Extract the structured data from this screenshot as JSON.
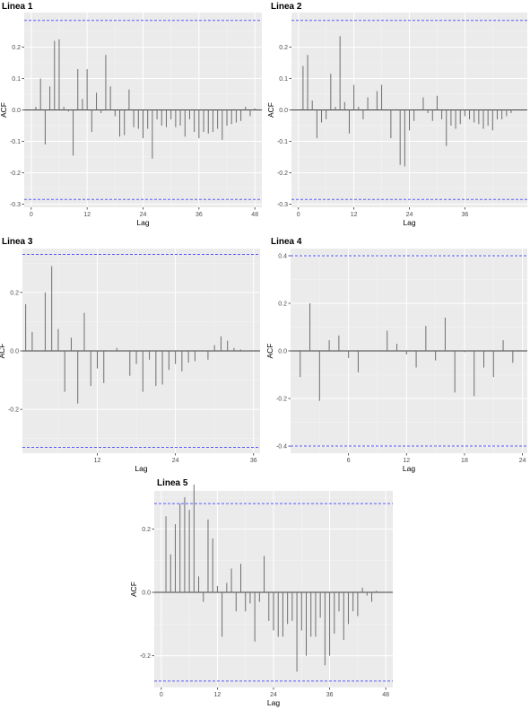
{
  "chart_data": [
    {
      "type": "bar",
      "title": "Linea 1",
      "xlabel": "Lag",
      "ylabel": "ACF",
      "xlim": [
        -1.5,
        49.5
      ],
      "ylim": [
        -0.31,
        0.31
      ],
      "xticks": [
        0,
        12,
        24,
        36,
        48
      ],
      "yticks": [
        -0.3,
        -0.2,
        -0.1,
        0.0,
        0.1,
        0.2
      ],
      "ytick_labels": [
        "-0.3",
        "-0.2",
        "-0.1",
        "0.0",
        "0.1",
        "0.2"
      ],
      "confidence_limit": 0.285,
      "grid": true,
      "lags": [
        1,
        2,
        3,
        4,
        5,
        6,
        7,
        8,
        9,
        10,
        11,
        12,
        13,
        14,
        15,
        16,
        17,
        18,
        19,
        20,
        21,
        22,
        23,
        24,
        25,
        26,
        27,
        28,
        29,
        30,
        31,
        32,
        33,
        34,
        35,
        36,
        37,
        38,
        39,
        40,
        41,
        42,
        43,
        44,
        45,
        46,
        47,
        48
      ],
      "values": [
        0.01,
        0.1,
        -0.11,
        0.075,
        0.22,
        0.225,
        0.01,
        -0.005,
        -0.145,
        0.13,
        0.035,
        0.13,
        -0.07,
        0.055,
        -0.01,
        0.175,
        0.075,
        -0.02,
        -0.085,
        -0.08,
        0.065,
        -0.055,
        -0.06,
        -0.09,
        -0.06,
        -0.155,
        -0.03,
        -0.05,
        -0.055,
        -0.03,
        -0.055,
        -0.05,
        -0.085,
        -0.03,
        -0.07,
        -0.09,
        -0.07,
        -0.075,
        -0.07,
        -0.06,
        -0.095,
        -0.05,
        -0.045,
        -0.04,
        -0.035,
        0.01,
        -0.02,
        0.005
      ]
    },
    {
      "type": "bar",
      "title": "Linea 2",
      "xlabel": "Lag",
      "ylabel": "ACF",
      "xlim": [
        -1.5,
        49.5
      ],
      "ylim": [
        -0.31,
        0.31
      ],
      "xticks": [
        0,
        12,
        24,
        36
      ],
      "yticks": [
        -0.3,
        -0.2,
        -0.1,
        0.0,
        0.1,
        0.2
      ],
      "ytick_labels": [
        "-0.3",
        "-0.2",
        "-0.1",
        "0.0",
        "0.1",
        "0.2"
      ],
      "confidence_limit": 0.285,
      "grid": true,
      "lags": [
        1,
        2,
        3,
        4,
        5,
        6,
        7,
        8,
        9,
        10,
        11,
        12,
        13,
        14,
        15,
        16,
        17,
        18,
        19,
        20,
        21,
        22,
        23,
        24,
        25,
        26,
        27,
        28,
        29,
        30,
        31,
        32,
        33,
        34,
        35,
        36,
        37,
        38,
        39,
        40,
        41,
        42,
        43,
        44,
        45,
        46,
        47,
        48
      ],
      "values": [
        0.14,
        0.175,
        0.03,
        -0.09,
        -0.04,
        -0.03,
        0.115,
        0.01,
        0.235,
        0.025,
        -0.075,
        0.08,
        0.01,
        -0.03,
        0.04,
        0.0,
        0.06,
        0.08,
        0.0,
        -0.09,
        0.0,
        -0.175,
        -0.18,
        -0.065,
        -0.035,
        0.0,
        0.04,
        -0.01,
        -0.035,
        0.045,
        -0.03,
        -0.115,
        -0.05,
        -0.06,
        -0.045,
        -0.02,
        -0.03,
        -0.04,
        -0.045,
        -0.06,
        -0.05,
        -0.065,
        -0.03,
        -0.03,
        -0.02,
        -0.01,
        0.0,
        0.0
      ]
    },
    {
      "type": "bar",
      "title": "Linea 3",
      "xlabel": "Lag",
      "ylabel": "ACF",
      "xlim": [
        0.5,
        37
      ],
      "ylim": [
        -0.35,
        0.35
      ],
      "xticks": [
        12,
        24,
        36
      ],
      "yticks": [
        -0.2,
        0.0,
        0.2
      ],
      "ytick_labels": [
        "-0.2",
        "0.0",
        "0.2"
      ],
      "confidence_limit": 0.33,
      "grid": true,
      "lags": [
        1,
        2,
        3,
        4,
        5,
        6,
        7,
        8,
        9,
        10,
        11,
        12,
        13,
        14,
        15,
        16,
        17,
        18,
        19,
        20,
        21,
        22,
        23,
        24,
        25,
        26,
        27,
        28,
        29,
        30,
        31,
        32,
        33,
        34,
        35,
        36
      ],
      "values": [
        0.16,
        0.065,
        0.0,
        0.2,
        0.29,
        0.075,
        -0.14,
        0.045,
        -0.18,
        0.13,
        -0.12,
        -0.06,
        -0.11,
        0.0,
        0.01,
        0.0,
        -0.085,
        -0.045,
        -0.14,
        -0.03,
        -0.12,
        -0.115,
        -0.065,
        -0.045,
        -0.07,
        -0.04,
        -0.035,
        0.0,
        -0.03,
        0.02,
        0.05,
        0.035,
        0.01,
        0.005,
        0.0,
        0.0
      ]
    },
    {
      "type": "bar",
      "title": "Linea 4",
      "xlabel": "Lag",
      "ylabel": "ACF",
      "xlim": [
        0,
        24.5
      ],
      "ylim": [
        -0.43,
        0.43
      ],
      "xticks": [
        6,
        12,
        18,
        24
      ],
      "yticks": [
        -0.4,
        -0.2,
        0.0,
        0.2,
        0.4
      ],
      "ytick_labels": [
        "-0.4",
        "-0.2",
        "0.0",
        "0.2",
        "0.4"
      ],
      "confidence_limit": 0.4,
      "grid": true,
      "lags": [
        1,
        2,
        3,
        4,
        5,
        6,
        7,
        8,
        9,
        10,
        11,
        12,
        13,
        14,
        15,
        16,
        17,
        18,
        19,
        20,
        21,
        22,
        23
      ],
      "values": [
        -0.11,
        0.2,
        -0.21,
        0.045,
        0.065,
        -0.03,
        -0.09,
        0.0,
        0.0,
        0.085,
        0.03,
        -0.015,
        -0.07,
        0.105,
        -0.04,
        0.14,
        -0.175,
        -0.005,
        -0.19,
        -0.07,
        -0.11,
        0.045,
        -0.05
      ]
    },
    {
      "type": "bar",
      "title": "Linea 5",
      "xlabel": "Lag",
      "ylabel": "ACF",
      "xlim": [
        -1.5,
        49.5
      ],
      "ylim": [
        -0.3,
        0.32
      ],
      "xticks": [
        0,
        12,
        24,
        36,
        48
      ],
      "yticks": [
        -0.2,
        0.0,
        0.2
      ],
      "ytick_labels": [
        "-0.2",
        "0.0",
        "0.2"
      ],
      "confidence_limit": 0.28,
      "grid": true,
      "lags": [
        1,
        2,
        3,
        4,
        5,
        6,
        7,
        8,
        9,
        10,
        11,
        12,
        13,
        14,
        15,
        16,
        17,
        18,
        19,
        20,
        21,
        22,
        23,
        24,
        25,
        26,
        27,
        28,
        29,
        30,
        31,
        32,
        33,
        34,
        35,
        36,
        37,
        38,
        39,
        40,
        41,
        42,
        43,
        44,
        45,
        46,
        47,
        48
      ],
      "values": [
        0.24,
        0.12,
        0.215,
        0.28,
        0.3,
        0.26,
        0.34,
        0.05,
        -0.03,
        0.23,
        0.17,
        0.02,
        -0.14,
        0.03,
        0.075,
        -0.06,
        0.09,
        -0.06,
        -0.035,
        -0.155,
        -0.03,
        0.115,
        -0.09,
        -0.12,
        -0.14,
        -0.14,
        -0.1,
        -0.09,
        -0.25,
        -0.12,
        -0.2,
        -0.14,
        -0.14,
        -0.08,
        -0.23,
        -0.2,
        -0.13,
        -0.06,
        -0.15,
        -0.1,
        -0.06,
        -0.075,
        0.015,
        -0.01,
        -0.03,
        0.005,
        0.0,
        0.0
      ]
    }
  ],
  "colors": {
    "panel_background": "#ebebeb",
    "grid_major": "#ffffff",
    "grid_minor": "#f4f4f4",
    "bar": "#6e6e6e",
    "zero_line": "#000000",
    "confidence_line": "#5a5aff",
    "tick_text": "#4d4d4d",
    "title_text": "#000000"
  }
}
